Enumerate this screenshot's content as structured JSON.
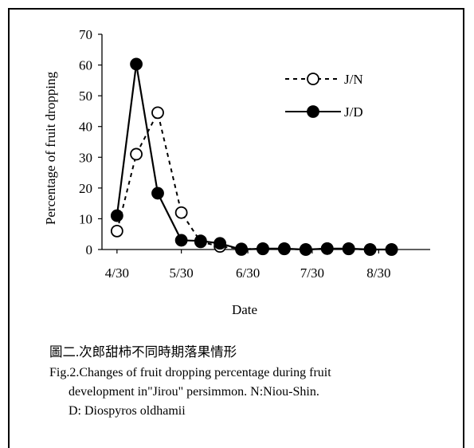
{
  "chart_data": {
    "type": "line",
    "ylabel": "Percentage of fruit dropping",
    "xlabel": "Date",
    "ylim": [
      0,
      70
    ],
    "yticks": [
      0,
      10,
      20,
      30,
      40,
      50,
      60,
      70
    ],
    "xlim": [
      "2000-04-23",
      "2000-09-23"
    ],
    "xticks": [
      {
        "date": "2000-04-30",
        "label": "4/30"
      },
      {
        "date": "2000-05-30",
        "label": "5/30"
      },
      {
        "date": "2000-06-30",
        "label": "6/30"
      },
      {
        "date": "2000-07-30",
        "label": "7/30"
      },
      {
        "date": "2000-08-30",
        "label": "8/30"
      }
    ],
    "grid": false,
    "legend_position": "top-right",
    "series": [
      {
        "name": "J/N",
        "line_style": "dashed",
        "marker": "open-circle",
        "points": [
          {
            "date": "2000-04-30",
            "y": 6
          },
          {
            "date": "2000-05-09",
            "y": 31
          },
          {
            "date": "2000-05-19",
            "y": 44.5
          },
          {
            "date": "2000-05-30",
            "y": 12
          },
          {
            "date": "2000-06-08",
            "y": 2.5
          },
          {
            "date": "2000-06-17",
            "y": 1
          },
          {
            "date": "2000-06-27",
            "y": 0.2
          },
          {
            "date": "2000-07-07",
            "y": 0.2
          },
          {
            "date": "2000-07-17",
            "y": 0.2
          },
          {
            "date": "2000-07-27",
            "y": 0
          },
          {
            "date": "2000-08-06",
            "y": 0.3
          },
          {
            "date": "2000-08-16",
            "y": 0.2
          },
          {
            "date": "2000-08-26",
            "y": 0
          },
          {
            "date": "2000-09-05",
            "y": 0
          }
        ]
      },
      {
        "name": "J/D",
        "line_style": "solid",
        "marker": "filled-circle",
        "points": [
          {
            "date": "2000-04-30",
            "y": 11
          },
          {
            "date": "2000-05-09",
            "y": 60.3
          },
          {
            "date": "2000-05-19",
            "y": 18.3
          },
          {
            "date": "2000-05-30",
            "y": 3
          },
          {
            "date": "2000-06-08",
            "y": 2.8
          },
          {
            "date": "2000-06-17",
            "y": 2
          },
          {
            "date": "2000-06-27",
            "y": 0
          },
          {
            "date": "2000-07-07",
            "y": 0.3
          },
          {
            "date": "2000-07-17",
            "y": 0.3
          },
          {
            "date": "2000-07-27",
            "y": 0
          },
          {
            "date": "2000-08-06",
            "y": 0.3
          },
          {
            "date": "2000-08-16",
            "y": 0.3
          },
          {
            "date": "2000-08-26",
            "y": 0
          },
          {
            "date": "2000-09-05",
            "y": 0
          }
        ]
      }
    ]
  },
  "caption": {
    "zh": "圖二.次郎甜柿不同時期落果情形",
    "en_line1": "Fig.2.Changes of fruit dropping percentage during fruit",
    "en_line2": "development in\"Jirou\" persimmon.  N:Niou-Shin.",
    "en_line3": "D:  Diospyros oldhamii"
  },
  "colors": {
    "line": "#000000",
    "background": "#ffffff"
  }
}
